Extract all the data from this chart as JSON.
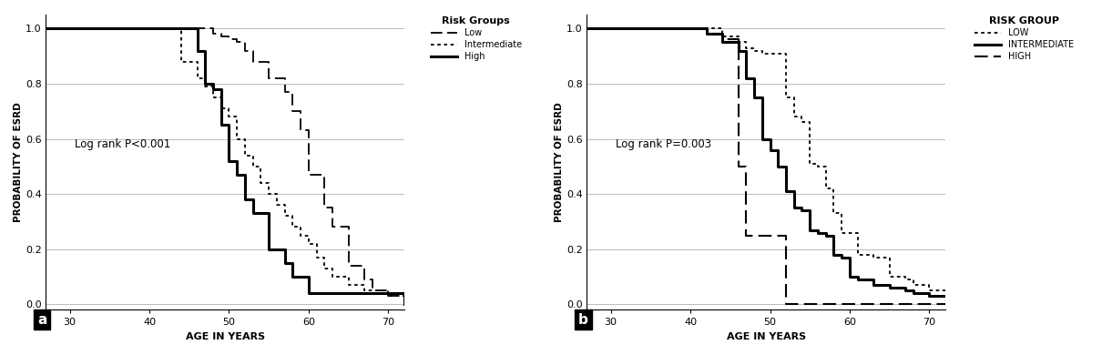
{
  "panel_a": {
    "xlabel": "AGE IN YEARS",
    "ylabel": "PROBABILITY OF ESRD",
    "annotation": "Log rank P<0.001",
    "legend_title": "Risk Groups",
    "legend_entries": [
      "Low",
      "Intermediate",
      "High"
    ],
    "xlim": [
      27,
      72
    ],
    "ylim": [
      -0.02,
      1.05
    ],
    "xticks": [
      30,
      40,
      50,
      60,
      70
    ],
    "yticks": [
      0.0,
      0.2,
      0.4,
      0.6,
      0.8,
      1.0
    ],
    "low_x": [
      27,
      47,
      48,
      49,
      50,
      51,
      52,
      53,
      55,
      57,
      58,
      59,
      60,
      61,
      62,
      63,
      64,
      65,
      67,
      68,
      70,
      72
    ],
    "low_y": [
      1.0,
      1.0,
      0.98,
      0.97,
      0.96,
      0.95,
      0.92,
      0.88,
      0.82,
      0.77,
      0.7,
      0.63,
      0.47,
      0.47,
      0.35,
      0.28,
      0.28,
      0.14,
      0.09,
      0.05,
      0.03,
      0.03
    ],
    "int_x": [
      27,
      42,
      44,
      46,
      47,
      48,
      49,
      50,
      51,
      52,
      53,
      54,
      55,
      56,
      57,
      58,
      59,
      60,
      61,
      62,
      63,
      65,
      67,
      70,
      72
    ],
    "int_y": [
      1.0,
      1.0,
      0.88,
      0.82,
      0.79,
      0.75,
      0.71,
      0.68,
      0.6,
      0.54,
      0.5,
      0.44,
      0.4,
      0.36,
      0.32,
      0.28,
      0.25,
      0.22,
      0.17,
      0.13,
      0.1,
      0.07,
      0.05,
      0.03,
      0.02
    ],
    "high_x": [
      27,
      44,
      46,
      47,
      48,
      49,
      50,
      51,
      52,
      53,
      55,
      57,
      58,
      60,
      72
    ],
    "high_y": [
      1.0,
      1.0,
      0.92,
      0.8,
      0.78,
      0.65,
      0.52,
      0.47,
      0.38,
      0.33,
      0.2,
      0.15,
      0.1,
      0.04,
      0.0
    ]
  },
  "panel_b": {
    "xlabel": "AGE IN YEARS",
    "ylabel": "PROBABILITY OF ESRD",
    "annotation": "Log rank P=0.003",
    "legend_title": "RISK GROUP",
    "legend_entries": [
      "LOW",
      "INTERMEDIATE",
      "HIGH"
    ],
    "xlim": [
      27,
      72
    ],
    "ylim": [
      -0.02,
      1.05
    ],
    "xticks": [
      30,
      40,
      50,
      60,
      70
    ],
    "yticks": [
      0.0,
      0.2,
      0.4,
      0.6,
      0.8,
      1.0
    ],
    "low_x": [
      27,
      42,
      44,
      46,
      47,
      48,
      49,
      50,
      51,
      52,
      53,
      54,
      55,
      56,
      57,
      58,
      59,
      61,
      63,
      65,
      67,
      68,
      70,
      72
    ],
    "low_y": [
      1.0,
      1.0,
      0.97,
      0.95,
      0.93,
      0.92,
      0.91,
      0.91,
      0.91,
      0.75,
      0.68,
      0.66,
      0.51,
      0.5,
      0.42,
      0.33,
      0.26,
      0.18,
      0.17,
      0.1,
      0.09,
      0.07,
      0.05,
      0.05
    ],
    "int_x": [
      27,
      40,
      42,
      44,
      46,
      47,
      48,
      49,
      50,
      51,
      52,
      53,
      54,
      55,
      56,
      57,
      58,
      59,
      60,
      61,
      63,
      65,
      67,
      68,
      70,
      72
    ],
    "int_y": [
      1.0,
      1.0,
      0.98,
      0.95,
      0.92,
      0.82,
      0.75,
      0.6,
      0.56,
      0.5,
      0.41,
      0.35,
      0.34,
      0.27,
      0.26,
      0.25,
      0.18,
      0.17,
      0.1,
      0.09,
      0.07,
      0.06,
      0.05,
      0.04,
      0.03,
      0.03
    ],
    "high_x": [
      27,
      40,
      42,
      44,
      46,
      47,
      48,
      49,
      52,
      72
    ],
    "high_y": [
      1.0,
      1.0,
      0.98,
      0.96,
      0.5,
      0.25,
      0.25,
      0.25,
      0.0,
      0.0
    ]
  },
  "bg_color": "#ffffff",
  "grid_color": "#bbbbbb"
}
